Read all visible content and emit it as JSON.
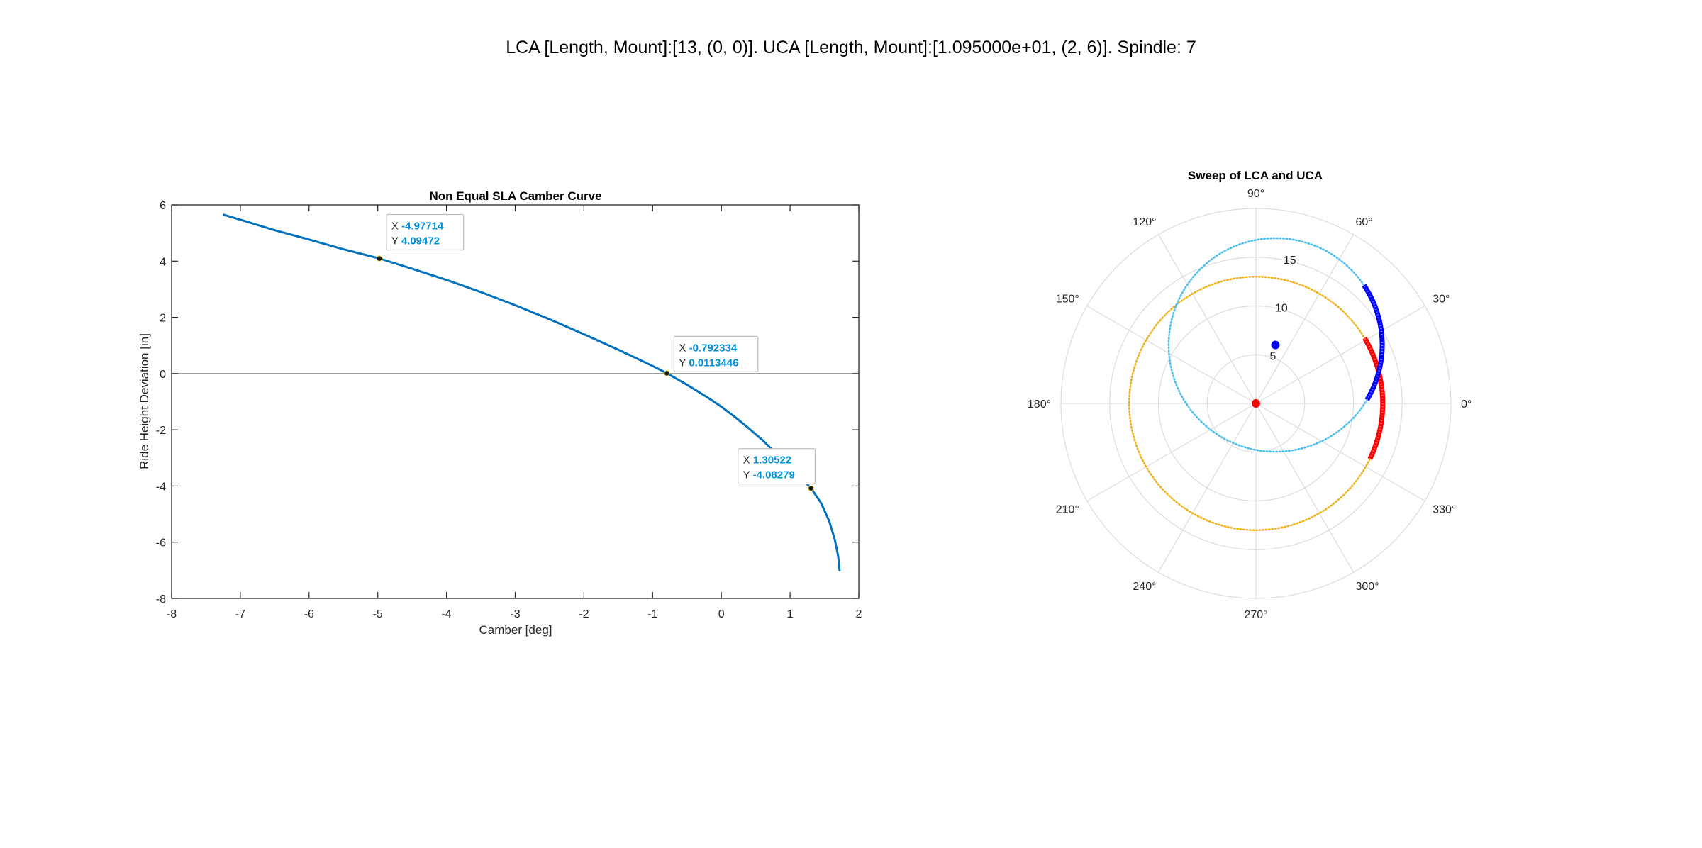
{
  "figure": {
    "suptitle": "LCA [Length, Mount]:[13, (0, 0)]. UCA [Length, Mount]:[1.095000e+01, (2, 6)]. Spindle: 7"
  },
  "chart_data": [
    {
      "type": "line",
      "title": "Non Equal SLA Camber Curve",
      "xlabel": "Camber [deg]",
      "ylabel": "Ride Height Deviation [in]",
      "xlim": [
        -8,
        2
      ],
      "ylim": [
        -8,
        6
      ],
      "xticks": [
        -8,
        -7,
        -6,
        -5,
        -4,
        -3,
        -2,
        -1,
        0,
        1,
        2
      ],
      "yticks": [
        -8,
        -6,
        -4,
        -2,
        0,
        2,
        4,
        6
      ],
      "grid": false,
      "reference_line_y": 0,
      "colors": {
        "line": "#0072BD",
        "axes": "#262626",
        "reference": "#808080",
        "datatip_value": "#0090d9"
      },
      "series": [
        {
          "x": [
            -7.24,
            -6.9,
            -6.5,
            -6.0,
            -5.5,
            -4.97714,
            -4.5,
            -4.0,
            -3.5,
            -3.0,
            -2.5,
            -2.0,
            -1.5,
            -1.0,
            -0.792334,
            -0.5,
            -0.2,
            0.0,
            0.2,
            0.4,
            0.6,
            0.8,
            1.0,
            1.15,
            1.30522,
            1.45,
            1.57,
            1.65,
            1.7,
            1.72
          ],
          "y": [
            5.65,
            5.4,
            5.1,
            4.77,
            4.42,
            4.09472,
            3.73,
            3.33,
            2.9,
            2.43,
            1.93,
            1.4,
            0.85,
            0.27,
            0.0113446,
            -0.4,
            -0.85,
            -1.18,
            -1.55,
            -1.95,
            -2.37,
            -2.85,
            -3.35,
            -3.7,
            -4.08279,
            -4.6,
            -5.25,
            -5.9,
            -6.5,
            -7.0
          ]
        }
      ],
      "datatips": [
        {
          "x_label": "X",
          "y_label": "Y",
          "x": -4.97714,
          "y": 4.09472,
          "x_text": "-4.97714",
          "y_text": "4.09472"
        },
        {
          "x_label": "X",
          "y_label": "Y",
          "x": -0.792334,
          "y": 0.0113446,
          "x_text": "-0.792334",
          "y_text": "0.0113446"
        },
        {
          "x_label": "X",
          "y_label": "Y",
          "x": 1.30522,
          "y": -4.08279,
          "x_text": "1.30522",
          "y_text": "-4.08279"
        }
      ]
    },
    {
      "type": "polar",
      "title": "Sweep of LCA and UCA",
      "rlim": [
        0,
        20
      ],
      "rticks": [
        5,
        10,
        15
      ],
      "theta_ticks_deg": [
        0,
        30,
        60,
        90,
        120,
        150,
        180,
        210,
        240,
        270,
        300,
        330
      ],
      "theta_tick_labels": [
        "0°",
        "30°",
        "60°",
        "90°",
        "120°",
        "150°",
        "180°",
        "210°",
        "240°",
        "270°",
        "300°",
        "330°"
      ],
      "grid": true,
      "colors": {
        "grid": "#dcdcdc",
        "lca_circle": "#EDB120",
        "uca_circle": "#4DBEEE",
        "lca_sweep": "#ff0000",
        "uca_sweep": "#0000ff"
      },
      "series": [
        {
          "kind": "circle",
          "style": "dotted",
          "center_cartesian": [
            0,
            0
          ],
          "radius": 13,
          "color_key": "lca_circle"
        },
        {
          "kind": "circle",
          "style": "dotted",
          "center_cartesian": [
            2,
            6
          ],
          "radius": 10.95,
          "color_key": "uca_circle"
        },
        {
          "kind": "arc",
          "style": "thick",
          "center_cartesian": [
            0,
            0
          ],
          "radius": 13,
          "theta_from_deg": -26,
          "theta_to_deg": 31,
          "color_key": "lca_sweep"
        },
        {
          "kind": "arc",
          "style": "thick",
          "center_cartesian": [
            2,
            6
          ],
          "radius": 10.95,
          "theta_from_deg": -31,
          "theta_to_deg": 34,
          "color_key": "uca_sweep"
        },
        {
          "kind": "point",
          "center_cartesian": [
            0,
            0
          ],
          "color_key": "lca_sweep"
        },
        {
          "kind": "point",
          "center_cartesian": [
            2,
            6
          ],
          "color_key": "uca_sweep"
        }
      ]
    }
  ]
}
